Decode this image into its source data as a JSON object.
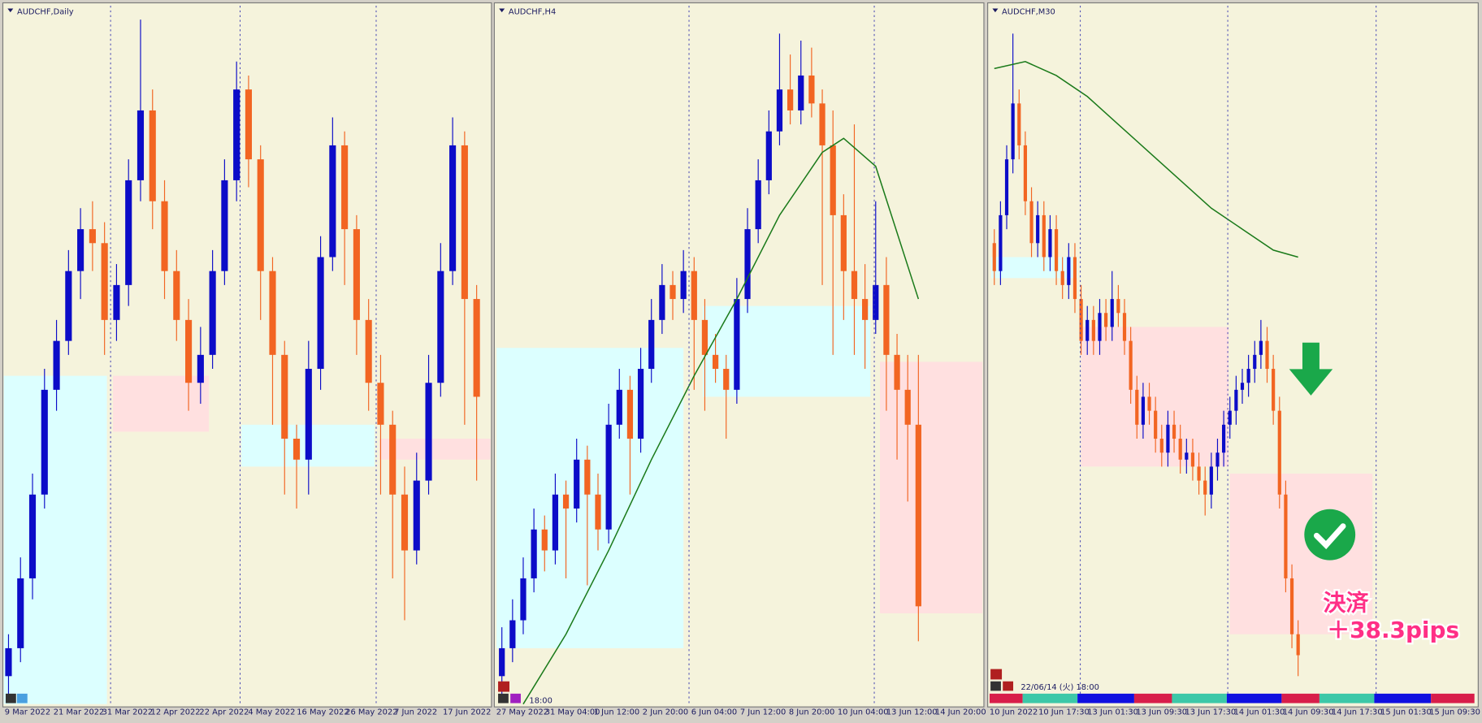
{
  "panels": [
    {
      "title": "AUDCHF,Daily",
      "x_labels": [
        "9 Mar 2022",
        "21 Mar 2022",
        "31 Mar 2022",
        "12 Apr 2022",
        "22 Apr 2022",
        "4 May 2022",
        "16 May 2022",
        "26 May 2022",
        "7 Jun 2022",
        "17 Jun 2022"
      ],
      "candles": [
        [
          4,
          10,
          1,
          8
        ],
        [
          8,
          21,
          6,
          18
        ],
        [
          18,
          33,
          15,
          30
        ],
        [
          30,
          48,
          28,
          45
        ],
        [
          45,
          55,
          42,
          52
        ],
        [
          52,
          65,
          50,
          62
        ],
        [
          62,
          71,
          58,
          68
        ],
        [
          68,
          72,
          62,
          66
        ],
        [
          66,
          69,
          50,
          55
        ],
        [
          55,
          63,
          52,
          60
        ],
        [
          60,
          78,
          57,
          75
        ],
        [
          75,
          98,
          72,
          85
        ],
        [
          85,
          88,
          68,
          72
        ],
        [
          72,
          75,
          58,
          62
        ],
        [
          62,
          65,
          52,
          55
        ],
        [
          55,
          58,
          42,
          46
        ],
        [
          46,
          54,
          43,
          50
        ],
        [
          50,
          65,
          48,
          62
        ],
        [
          62,
          78,
          60,
          75
        ],
        [
          75,
          92,
          72,
          88
        ],
        [
          88,
          90,
          74,
          78
        ],
        [
          78,
          80,
          55,
          62
        ],
        [
          62,
          64,
          40,
          50
        ],
        [
          50,
          52,
          30,
          38
        ],
        [
          38,
          40,
          28,
          35
        ],
        [
          35,
          52,
          30,
          48
        ],
        [
          48,
          67,
          45,
          64
        ],
        [
          64,
          84,
          62,
          80
        ],
        [
          80,
          82,
          60,
          68
        ],
        [
          68,
          70,
          50,
          55
        ],
        [
          55,
          58,
          42,
          46
        ],
        [
          46,
          50,
          30,
          40
        ],
        [
          40,
          42,
          18,
          30
        ],
        [
          30,
          34,
          12,
          22
        ],
        [
          22,
          36,
          20,
          32
        ],
        [
          32,
          50,
          30,
          46
        ],
        [
          46,
          66,
          44,
          62
        ],
        [
          62,
          84,
          60,
          80
        ],
        [
          80,
          82,
          40,
          58
        ],
        [
          58,
          60,
          32,
          44
        ]
      ],
      "zones": [
        {
          "from": -0.5,
          "to": 8.2,
          "low": 0,
          "high": 47,
          "color": "#dcffff"
        },
        {
          "from": 8.7,
          "to": 16.7,
          "low": 39,
          "high": 47,
          "color": "#ffe0e0"
        },
        {
          "from": 19.4,
          "to": 30.5,
          "low": 34,
          "high": 40,
          "color": "#dcffff"
        },
        {
          "from": 30.9,
          "to": 40.2,
          "low": 35,
          "high": 38,
          "color": "#ffe0e0"
        }
      ]
    },
    {
      "title": "AUDCHF,H4",
      "x_labels": [
        "27 May 2022",
        "31 May 04:00",
        "1 Jun 12:00",
        "2 Jun 20:00",
        "6 Jun 04:00",
        "7 Jun 12:00",
        "8 Jun 20:00",
        "10 Jun 04:00",
        "13 Jun 12:00",
        "14 Jun 20:00"
      ],
      "marker_label": "18:00",
      "candles": [
        [
          4,
          11,
          1,
          8
        ],
        [
          8,
          15,
          6,
          12
        ],
        [
          12,
          21,
          10,
          18
        ],
        [
          18,
          28,
          16,
          25
        ],
        [
          25,
          27,
          19,
          22
        ],
        [
          22,
          33,
          20,
          30
        ],
        [
          30,
          32,
          18,
          28
        ],
        [
          28,
          38,
          26,
          35
        ],
        [
          35,
          37,
          17,
          30
        ],
        [
          30,
          33,
          22,
          25
        ],
        [
          25,
          43,
          23,
          40
        ],
        [
          40,
          48,
          38,
          45
        ],
        [
          45,
          47,
          30,
          38
        ],
        [
          38,
          51,
          36,
          48
        ],
        [
          48,
          58,
          46,
          55
        ],
        [
          55,
          63,
          53,
          60
        ],
        [
          60,
          62,
          55,
          58
        ],
        [
          58,
          65,
          56,
          62
        ],
        [
          62,
          64,
          45,
          55
        ],
        [
          55,
          58,
          42,
          50
        ],
        [
          50,
          53,
          46,
          48
        ],
        [
          48,
          50,
          38,
          45
        ],
        [
          45,
          61,
          43,
          58
        ],
        [
          58,
          71,
          56,
          68
        ],
        [
          68,
          78,
          66,
          75
        ],
        [
          75,
          85,
          73,
          82
        ],
        [
          82,
          96,
          80,
          88
        ],
        [
          88,
          93,
          83,
          85
        ],
        [
          85,
          95,
          83,
          90
        ],
        [
          90,
          94,
          84,
          86
        ],
        [
          86,
          88,
          60,
          80
        ],
        [
          80,
          85,
          50,
          70
        ],
        [
          70,
          73,
          55,
          62
        ],
        [
          62,
          83,
          50,
          58
        ],
        [
          58,
          63,
          48,
          55
        ],
        [
          55,
          72,
          53,
          60
        ],
        [
          60,
          64,
          42,
          50
        ],
        [
          50,
          53,
          35,
          45
        ],
        [
          45,
          50,
          29,
          40
        ],
        [
          40,
          50,
          9,
          14
        ]
      ],
      "zones": [
        {
          "from": -0.5,
          "to": 17,
          "low": 8,
          "high": 51,
          "color": "#dcffff"
        },
        {
          "from": 18.8,
          "to": 34.5,
          "low": 44,
          "high": 57,
          "color": "#dcffff"
        },
        {
          "from": 35.4,
          "to": 45,
          "low": 13,
          "high": 49,
          "color": "#ffe0e0"
        }
      ],
      "ma": {
        "x": [
          2,
          6,
          10,
          14,
          18,
          22,
          26,
          30,
          32,
          35,
          39
        ],
        "values": [
          0,
          10,
          22,
          35,
          47,
          58,
          70,
          79,
          81,
          77,
          58
        ]
      }
    },
    {
      "title": "AUDCHF,M30",
      "x_labels": [
        "10 Jun 2022",
        "10 Jun 17:30",
        "13 Jun 01:30",
        "13 Jun 09:30",
        "13 Jun 17:30",
        "14 Jun 01:30",
        "14 Jun 09:30",
        "14 Jun 17:30",
        "15 Jun 01:30",
        "15 Jun 09:30"
      ],
      "marker_label": "22/06/14 (火) 18:00",
      "annotation": [
        "決済",
        "＋38.3pips"
      ],
      "candles": [
        [
          66,
          68,
          60,
          62
        ],
        [
          62,
          72,
          60,
          70
        ],
        [
          70,
          80,
          68,
          78
        ],
        [
          78,
          96,
          76,
          86
        ],
        [
          86,
          88,
          78,
          80
        ],
        [
          80,
          82,
          70,
          72
        ],
        [
          72,
          74,
          64,
          66
        ],
        [
          66,
          72,
          64,
          70
        ],
        [
          70,
          72,
          62,
          64
        ],
        [
          64,
          70,
          62,
          68
        ],
        [
          68,
          70,
          60,
          62
        ],
        [
          62,
          64,
          58,
          60
        ],
        [
          60,
          66,
          58,
          64
        ],
        [
          64,
          66,
          56,
          58
        ],
        [
          58,
          60,
          50,
          52
        ],
        [
          52,
          57,
          50,
          55
        ],
        [
          55,
          57,
          50,
          52
        ],
        [
          52,
          58,
          50,
          56
        ],
        [
          56,
          58,
          52,
          54
        ],
        [
          54,
          62,
          52,
          58
        ],
        [
          58,
          60,
          54,
          56
        ],
        [
          56,
          58,
          50,
          52
        ],
        [
          52,
          54,
          43,
          45
        ],
        [
          45,
          47,
          38,
          40
        ],
        [
          40,
          46,
          38,
          44
        ],
        [
          44,
          46,
          40,
          42
        ],
        [
          42,
          44,
          36,
          38
        ],
        [
          38,
          40,
          34,
          36
        ],
        [
          36,
          42,
          34,
          40
        ],
        [
          40,
          42,
          36,
          38
        ],
        [
          38,
          40,
          33,
          35
        ],
        [
          35,
          38,
          33,
          36
        ],
        [
          36,
          38,
          32,
          34
        ],
        [
          34,
          36,
          30,
          32
        ],
        [
          32,
          34,
          27,
          30
        ],
        [
          30,
          36,
          28,
          34
        ],
        [
          34,
          38,
          32,
          36
        ],
        [
          36,
          42,
          34,
          40
        ],
        [
          40,
          44,
          38,
          42
        ],
        [
          42,
          47,
          40,
          45
        ],
        [
          45,
          48,
          43,
          46
        ],
        [
          46,
          50,
          44,
          48
        ],
        [
          48,
          52,
          46,
          50
        ],
        [
          50,
          55,
          48,
          52
        ],
        [
          52,
          54,
          46,
          48
        ],
        [
          48,
          50,
          40,
          42
        ],
        [
          42,
          44,
          28,
          30
        ],
        [
          30,
          32,
          16,
          18
        ],
        [
          18,
          20,
          8,
          10
        ],
        [
          10,
          12,
          4,
          7
        ]
      ],
      "zones": [
        {
          "from": -0.5,
          "to": 13.4,
          "low": 61,
          "high": 64,
          "color": "#dcffff"
        },
        {
          "from": 14,
          "to": 37.8,
          "low": 34,
          "high": 54,
          "color": "#ffe0e0"
        },
        {
          "from": 38,
          "to": 61,
          "low": 10,
          "high": 33,
          "color": "#ffe0e0"
        }
      ],
      "ma": {
        "x": [
          0,
          5,
          10,
          15,
          20,
          25,
          30,
          35,
          40,
          45,
          49
        ],
        "values": [
          91,
          92,
          90,
          87,
          83,
          79,
          75,
          71,
          68,
          65,
          64
        ]
      }
    }
  ],
  "up_color": "#0c0cc8",
  "down_color": "#f26522",
  "ma_color": "#1a7a1a"
}
